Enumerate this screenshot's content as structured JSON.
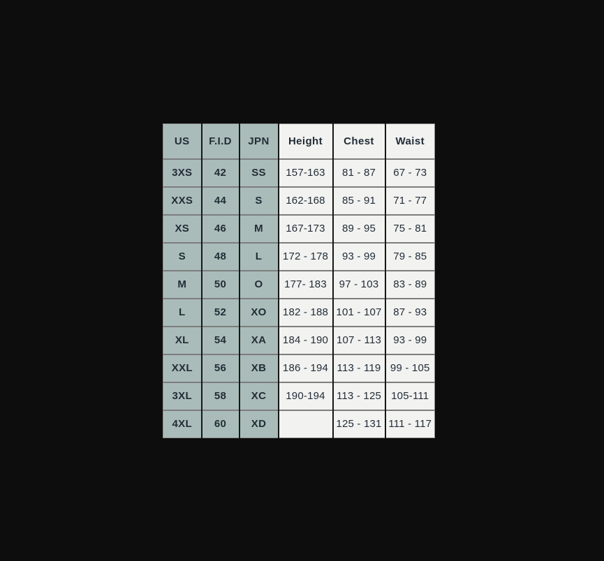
{
  "colors": {
    "page_bg": "#0d0d0d",
    "sage_cell_bg": "#aabcb9",
    "light_cell_bg": "#f2f2f0",
    "text": "#222d38",
    "border_vertical": "#161616",
    "border_horizontal": "#7d7d7d",
    "border_outer": "#919191"
  },
  "chart_data": {
    "type": "table",
    "columns": [
      "US",
      "F.I.D",
      "JPN",
      "Height",
      "Chest",
      "Waist"
    ],
    "rows": [
      [
        "3XS",
        "42",
        "SS",
        "157-163",
        "81 - 87",
        "67 - 73"
      ],
      [
        "XXS",
        "44",
        "S",
        "162-168",
        "85 - 91",
        "71 - 77"
      ],
      [
        "XS",
        "46",
        "M",
        "167-173",
        "89 - 95",
        "75 - 81"
      ],
      [
        "S",
        "48",
        "L",
        "172 - 178",
        "93 - 99",
        "79 - 85"
      ],
      [
        "M",
        "50",
        "O",
        "177- 183",
        "97 - 103",
        "83 - 89"
      ],
      [
        "L",
        "52",
        "XO",
        "182 - 188",
        "101 - 107",
        "87 - 93"
      ],
      [
        "XL",
        "54",
        "XA",
        "184 - 190",
        "107 - 113",
        "93 - 99"
      ],
      [
        "XXL",
        "56",
        "XB",
        "186 - 194",
        "113 - 119",
        "99 - 105"
      ],
      [
        "3XL",
        "58",
        "XC",
        "190-194",
        "113 - 125",
        "105-111"
      ],
      [
        "4XL",
        "60",
        "XD",
        "",
        "125 - 131",
        "111 - 117"
      ]
    ],
    "layout_hints": {
      "sage_column_count": 3,
      "grid": "on",
      "header_row": true
    }
  }
}
